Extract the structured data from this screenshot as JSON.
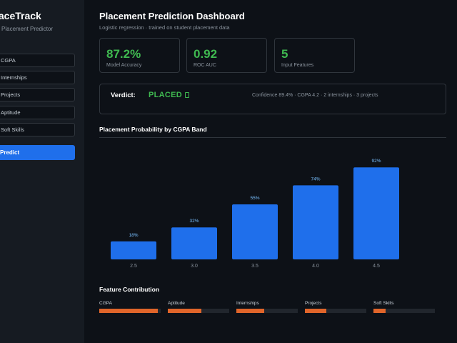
{
  "sidebar": {
    "brand": "laceTrack",
    "subtitle": "Placement Predictor",
    "fields": [
      {
        "label": "CGPA"
      },
      {
        "label": "Internships"
      },
      {
        "label": "Projects"
      },
      {
        "label": "Aptitude"
      },
      {
        "label": "Soft Skills"
      }
    ],
    "predict_label": "Predict"
  },
  "header": {
    "title": "Placement Prediction Dashboard",
    "subtitle": "Logistic regression · trained on student placement data"
  },
  "metrics": [
    {
      "value": "87.2%",
      "label": "Model Accuracy"
    },
    {
      "value": "0.92",
      "label": "ROC AUC"
    },
    {
      "value": "5",
      "label": "Input Features"
    }
  ],
  "verdict": {
    "label": "Verdict:",
    "value": "PLACED",
    "detail": "Confidence 89.4% · CGPA 4.2 · 2 internships · 3 projects"
  },
  "chart_section_title": "Placement Probability by CGPA Band",
  "chart_data": {
    "type": "bar",
    "categories": [
      "2.5",
      "3.0",
      "3.5",
      "4.0",
      "4.5"
    ],
    "values": [
      18,
      32,
      55,
      74,
      92
    ],
    "value_labels": [
      "18%",
      "32%",
      "55%",
      "74%",
      "92%"
    ],
    "ylim": [
      0,
      100
    ],
    "grid": false,
    "bar_color": "#1f6feb"
  },
  "feature_section_title": "Feature Contribution",
  "features": [
    {
      "name": "CGPA",
      "level": 0.95
    },
    {
      "name": "Aptitude",
      "level": 0.55
    },
    {
      "name": "Internships",
      "level": 0.45
    },
    {
      "name": "Projects",
      "level": 0.35
    },
    {
      "name": "Soft Skills",
      "level": 0.2
    }
  ],
  "colors": {
    "accent": "#1f6feb",
    "success": "#3fb950",
    "contribution": "#e0652a"
  }
}
